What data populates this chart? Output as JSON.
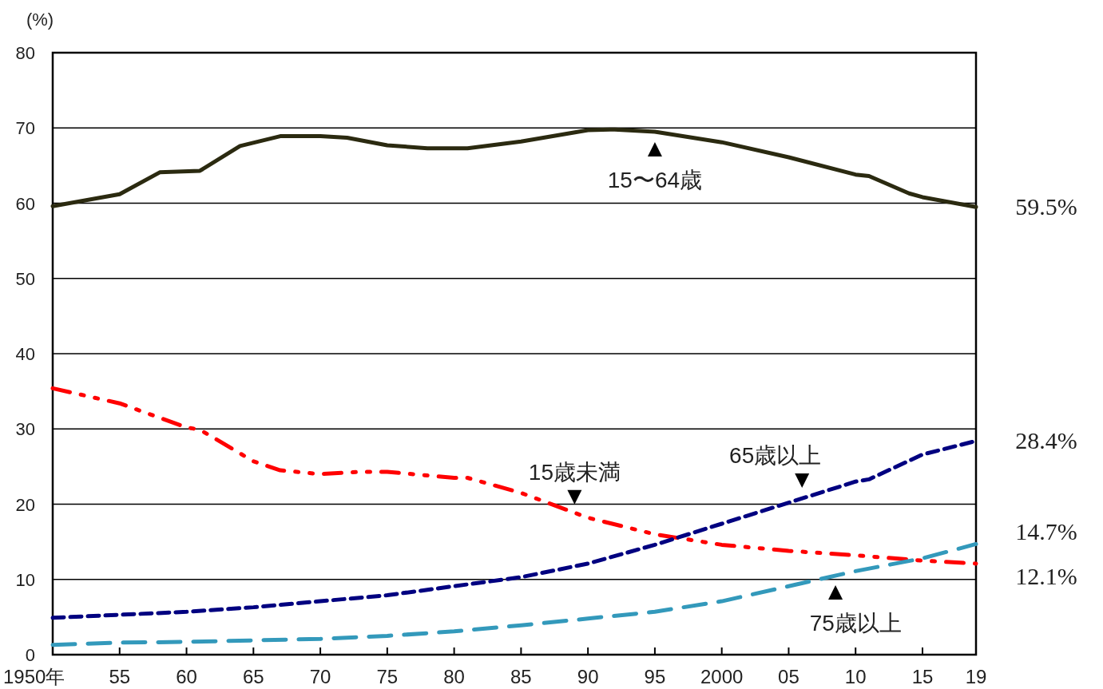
{
  "chart_data": {
    "type": "line",
    "ylabel": "(%)",
    "xlim": [
      1950,
      2019
    ],
    "ylim": [
      0,
      80
    ],
    "xticks": [
      {
        "value": 1950,
        "label": "1950年"
      },
      {
        "value": 1955,
        "label": "55"
      },
      {
        "value": 1960,
        "label": "60"
      },
      {
        "value": 1965,
        "label": "65"
      },
      {
        "value": 1970,
        "label": "70"
      },
      {
        "value": 1975,
        "label": "75"
      },
      {
        "value": 1980,
        "label": "80"
      },
      {
        "value": 1985,
        "label": "85"
      },
      {
        "value": 1990,
        "label": "90"
      },
      {
        "value": 1995,
        "label": "95"
      },
      {
        "value": 2000,
        "label": "2000"
      },
      {
        "value": 2005,
        "label": "05"
      },
      {
        "value": 2010,
        "label": "10"
      },
      {
        "value": 2015,
        "label": "15"
      },
      {
        "value": 2019,
        "label": "19"
      }
    ],
    "yticks": [
      0,
      10,
      20,
      30,
      40,
      50,
      60,
      70,
      80
    ],
    "grid": "y",
    "marker": "none",
    "series": [
      {
        "color": "#2b2a10",
        "line_style": "solid",
        "x": [
          1950,
          1955,
          1958,
          1961,
          1964,
          1967,
          1970,
          1972,
          1975,
          1978,
          1981,
          1985,
          1990,
          1992,
          1995,
          2000,
          2005,
          2010,
          2011,
          2014,
          2015,
          2019
        ],
        "values": [
          59.6,
          61.2,
          64.1,
          64.3,
          67.6,
          68.9,
          68.9,
          68.7,
          67.7,
          67.3,
          67.3,
          68.2,
          69.7,
          69.8,
          69.5,
          68.1,
          66.1,
          63.8,
          63.6,
          61.3,
          60.8,
          59.5
        ]
      },
      {
        "color": "#ff0000",
        "line_style": "dashed",
        "x": [
          1950,
          1955,
          1960,
          1961,
          1965,
          1967,
          1970,
          1973,
          1975,
          1980,
          1981,
          1985,
          1990,
          1995,
          2000,
          2005,
          2010,
          2015,
          2019
        ],
        "values": [
          35.4,
          33.4,
          30.2,
          29.9,
          25.7,
          24.5,
          24.0,
          24.3,
          24.3,
          23.5,
          23.5,
          21.5,
          18.2,
          16.0,
          14.6,
          13.8,
          13.2,
          12.5,
          12.1
        ]
      },
      {
        "color": "#000080",
        "line_style": "dashed",
        "x": [
          1950,
          1955,
          1960,
          1965,
          1970,
          1975,
          1980,
          1985,
          1990,
          1995,
          2000,
          2005,
          2010,
          2011,
          2015,
          2019
        ],
        "values": [
          4.9,
          5.3,
          5.7,
          6.3,
          7.1,
          7.9,
          9.1,
          10.3,
          12.1,
          14.6,
          17.4,
          20.2,
          23.0,
          23.3,
          26.6,
          28.4
        ]
      },
      {
        "color": "#3399bb",
        "line_style": "dashed",
        "x": [
          1950,
          1955,
          1960,
          1965,
          1970,
          1975,
          1980,
          1985,
          1990,
          1995,
          2000,
          2005,
          2010,
          2015,
          2019
        ],
        "values": [
          1.3,
          1.6,
          1.7,
          1.9,
          2.1,
          2.5,
          3.1,
          3.9,
          4.8,
          5.7,
          7.1,
          9.1,
          11.1,
          12.8,
          14.7
        ]
      }
    ],
    "annotations": [
      {
        "text": "15〜64歳",
        "x": 1995,
        "y": 69.5
      },
      {
        "text": "15歳未満",
        "x": 1989,
        "y": 18.6
      },
      {
        "text": "65歳以上",
        "x": 2006,
        "y": 20.8
      },
      {
        "text": "75歳以上",
        "x": 2008.5,
        "y": 10.6
      },
      {
        "text": "59.5%",
        "x": 2019,
        "y": 59.5
      },
      {
        "text": "28.4%",
        "x": 2019,
        "y": 28.4
      },
      {
        "text": "14.7%",
        "x": 2019,
        "y": 14.7
      },
      {
        "text": "12.1%",
        "x": 2019,
        "y": 12.1
      }
    ]
  }
}
